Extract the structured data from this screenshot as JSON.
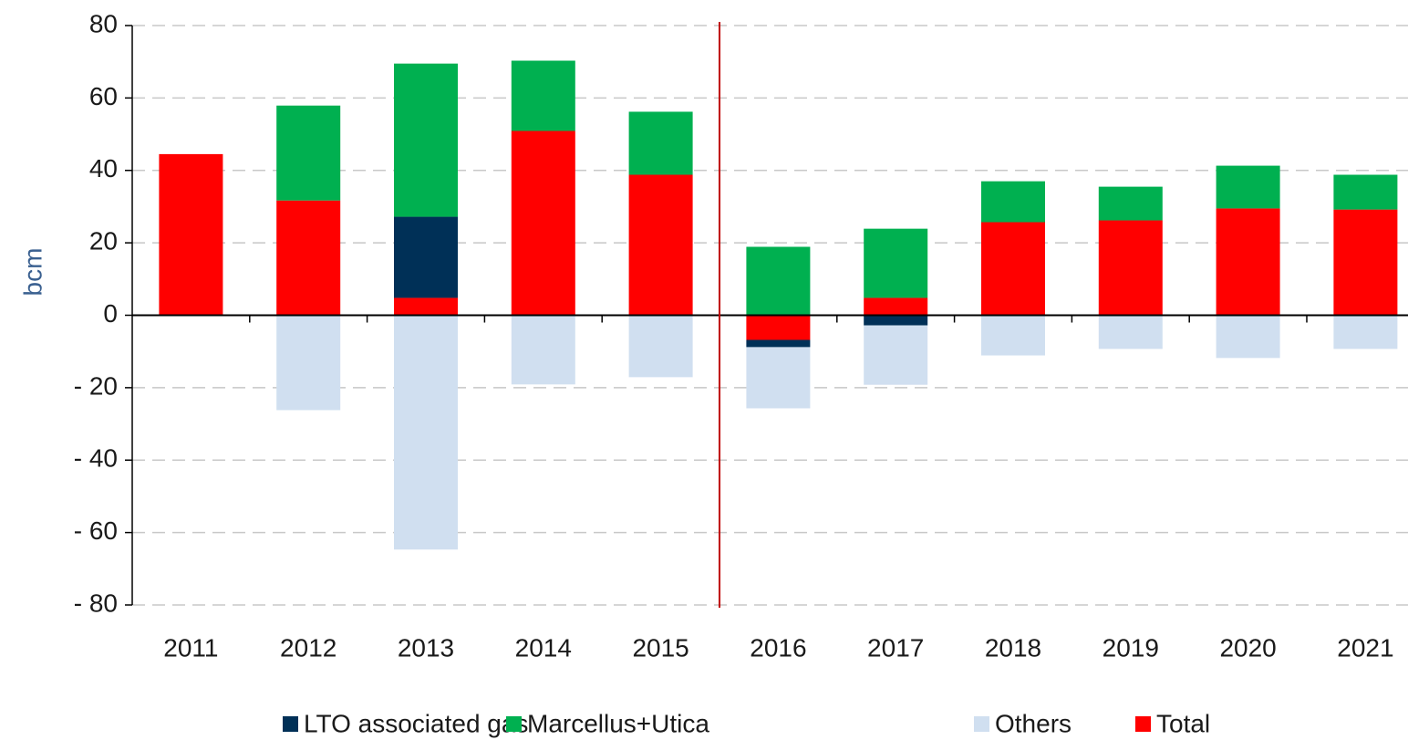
{
  "chart_data": {
    "type": "stacked_bar",
    "y_label": "bcm",
    "categories": [
      "2011",
      "2012",
      "2013",
      "2014",
      "2015",
      "2016",
      "2017",
      "2018",
      "2019",
      "2020",
      "2021"
    ],
    "series": [
      {
        "name": "LTO associated gas",
        "color": "#003057",
        "values": [
          0,
          0,
          22.4,
          0,
          0,
          -2.0,
          -2.8,
          0,
          0,
          0,
          0
        ]
      },
      {
        "name": "Marcellus+Utica",
        "color": "#00b050",
        "values": [
          0,
          26.2,
          42.3,
          19.4,
          17.4,
          18.9,
          19.1,
          11.3,
          9.3,
          11.8,
          9.6
        ]
      },
      {
        "name": "Others",
        "color": "#d0dff0",
        "values": [
          0,
          -26.2,
          -64.7,
          -19.1,
          -17.1,
          -16.9,
          -16.4,
          -11.1,
          -9.3,
          -11.8,
          -9.3
        ]
      },
      {
        "name": "Total",
        "color": "#ff0000",
        "values": [
          44.5,
          31.7,
          4.8,
          50.9,
          38.8,
          -6.8,
          4.8,
          25.7,
          26.2,
          29.5,
          29.2
        ]
      }
    ],
    "ylim": [
      -80,
      80
    ],
    "yticks": [
      {
        "value": -80,
        "label": "- 80"
      },
      {
        "value": -60,
        "label": "- 60"
      },
      {
        "value": -40,
        "label": "- 40"
      },
      {
        "value": -20,
        "label": "- 20"
      },
      0,
      20,
      40,
      60,
      80
    ],
    "grid": true
  }
}
